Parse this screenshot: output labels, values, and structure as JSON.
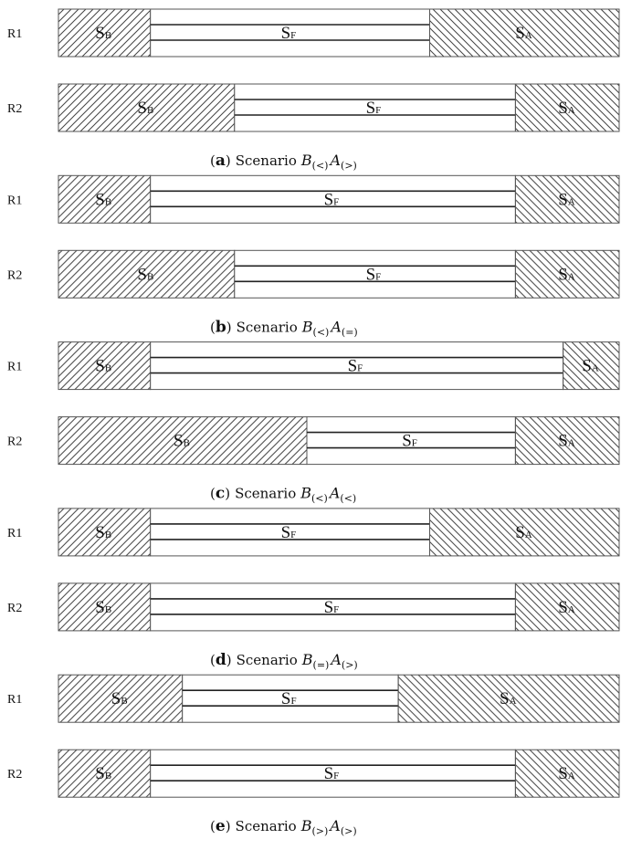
{
  "panels": [
    {
      "letter": "a",
      "caption_word": "Scenario",
      "caption_b_sub": "(<)",
      "caption_a_sub": "(>)",
      "rows": [
        {
          "name": "R1",
          "fractions": [
            0.164,
            0.498,
            0.338
          ]
        },
        {
          "name": "R2",
          "fractions": [
            0.314,
            0.501,
            0.185
          ]
        }
      ]
    },
    {
      "letter": "b",
      "caption_word": "Scenario",
      "caption_b_sub": "(<)",
      "caption_a_sub": "(=)",
      "rows": [
        {
          "name": "R1",
          "fractions": [
            0.164,
            0.651,
            0.185
          ]
        },
        {
          "name": "R2",
          "fractions": [
            0.314,
            0.501,
            0.185
          ]
        }
      ]
    },
    {
      "letter": "c",
      "caption_word": "Scenario",
      "caption_b_sub": "(<)",
      "caption_a_sub": "(<)",
      "rows": [
        {
          "name": "R1",
          "fractions": [
            0.164,
            0.736,
            0.1
          ]
        },
        {
          "name": "R2",
          "fractions": [
            0.443,
            0.372,
            0.185
          ]
        }
      ]
    },
    {
      "letter": "d",
      "caption_word": "Scenario",
      "caption_b_sub": "(=)",
      "caption_a_sub": "(>)",
      "rows": [
        {
          "name": "R1",
          "fractions": [
            0.164,
            0.498,
            0.338
          ]
        },
        {
          "name": "R2",
          "fractions": [
            0.164,
            0.651,
            0.185
          ]
        }
      ]
    },
    {
      "letter": "e",
      "caption_word": "Scenario",
      "caption_b_sub": "(>)",
      "caption_a_sub": "(>)",
      "rows": [
        {
          "name": "R1",
          "fractions": [
            0.221,
            0.385,
            0.394
          ]
        },
        {
          "name": "R2",
          "fractions": [
            0.164,
            0.651,
            0.185
          ]
        }
      ]
    }
  ],
  "segment_labels": {
    "before": {
      "main": "S",
      "sub": "B"
    },
    "feature": {
      "main": "S",
      "sub": "F"
    },
    "after": {
      "main": "S",
      "sub": "A"
    }
  },
  "caption_b_var": "B",
  "caption_a_var": "A",
  "caption_open": "(",
  "caption_close": ")"
}
